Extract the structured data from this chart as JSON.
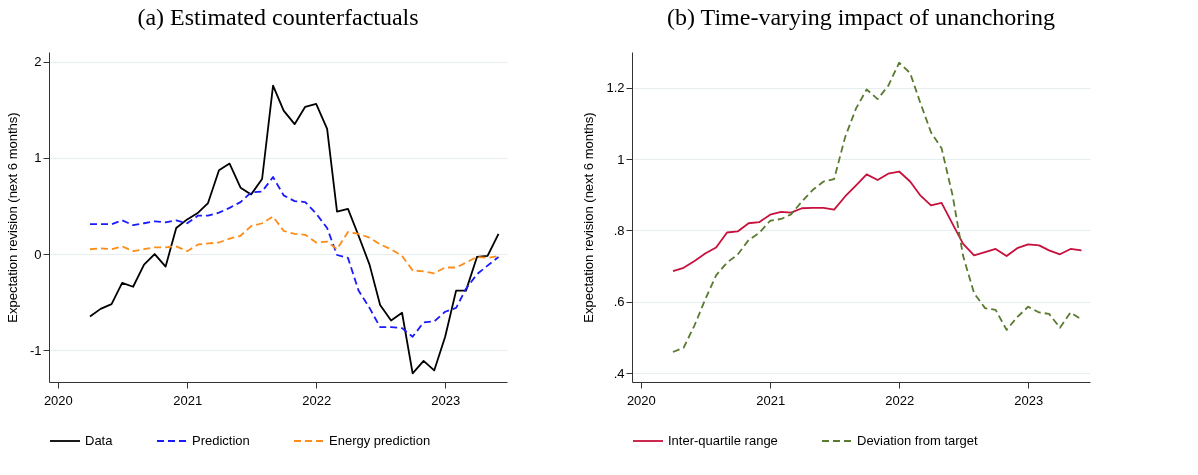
{
  "chart_data": [
    {
      "type": "line",
      "title": "(a) Estimated counterfactuals",
      "ylabel": "Expectation revision (next 6 months)",
      "x": [
        "2020-04",
        "2020-05",
        "2020-06",
        "2020-07",
        "2020-08",
        "2020-09",
        "2020-10",
        "2020-11",
        "2020-12",
        "2021-01",
        "2021-02",
        "2021-03",
        "2021-04",
        "2021-05",
        "2021-06",
        "2021-07",
        "2021-08",
        "2021-09",
        "2021-10",
        "2021-11",
        "2021-12",
        "2022-01",
        "2022-02",
        "2022-03",
        "2022-04",
        "2022-05",
        "2022-06",
        "2022-07",
        "2022-08",
        "2022-09",
        "2022-10",
        "2022-11",
        "2022-12",
        "2023-01",
        "2023-02",
        "2023-03",
        "2023-04",
        "2023-05",
        "2023-06"
      ],
      "series": [
        {
          "name": "Data",
          "color": "#000000",
          "line_style": "solid",
          "values": [
            -0.65,
            -0.57,
            -0.52,
            -0.3,
            -0.34,
            -0.11,
            0.0,
            -0.13,
            0.27,
            0.36,
            0.43,
            0.53,
            0.87,
            0.94,
            0.69,
            0.62,
            0.78,
            1.75,
            1.49,
            1.35,
            1.53,
            1.56,
            1.3,
            0.44,
            0.47,
            0.19,
            -0.11,
            -0.53,
            -0.69,
            -0.61,
            -1.24,
            -1.11,
            -1.21,
            -0.86,
            -0.38,
            -0.38,
            -0.03,
            -0.02,
            0.21
          ]
        },
        {
          "name": "Prediction",
          "color": "#1a1aff",
          "line_style": "dashed",
          "values": [
            0.31,
            0.31,
            0.31,
            0.35,
            0.3,
            0.32,
            0.34,
            0.33,
            0.35,
            0.32,
            0.4,
            0.4,
            0.43,
            0.48,
            0.54,
            0.64,
            0.65,
            0.8,
            0.61,
            0.55,
            0.54,
            0.42,
            0.27,
            -0.01,
            -0.04,
            -0.38,
            -0.56,
            -0.76,
            -0.76,
            -0.77,
            -0.86,
            -0.71,
            -0.7,
            -0.6,
            -0.56,
            -0.36,
            -0.21,
            -0.12,
            -0.03
          ]
        },
        {
          "name": "Energy prediction",
          "color": "#ff8c1a",
          "line_style": "dashed",
          "values": [
            0.05,
            0.06,
            0.05,
            0.08,
            0.03,
            0.05,
            0.07,
            0.07,
            0.08,
            0.03,
            0.1,
            0.11,
            0.12,
            0.16,
            0.19,
            0.29,
            0.32,
            0.39,
            0.24,
            0.21,
            0.2,
            0.12,
            0.13,
            0.05,
            0.23,
            0.21,
            0.17,
            0.1,
            0.05,
            -0.02,
            -0.17,
            -0.18,
            -0.2,
            -0.14,
            -0.14,
            -0.09,
            -0.03,
            -0.04,
            -0.02
          ]
        }
      ],
      "xlim": [
        "2019-12-07",
        "2023-06-25"
      ],
      "xticks": [
        {
          "value": "2020",
          "label": "2020"
        },
        {
          "value": "2021",
          "label": "2021"
        },
        {
          "value": "2022",
          "label": "2022"
        },
        {
          "value": "2023",
          "label": "2023"
        }
      ],
      "ylim": [
        -1.33,
        2.1
      ],
      "yticks": [
        -1,
        0,
        1,
        2
      ],
      "grid": "y",
      "legend": "bottom"
    },
    {
      "type": "line",
      "title": "(b) Time-varying impact of unanchoring",
      "ylabel": "Expectation revision (next 6 months)",
      "x": [
        "2020-04",
        "2020-05",
        "2020-06",
        "2020-07",
        "2020-08",
        "2020-09",
        "2020-10",
        "2020-11",
        "2020-12",
        "2021-01",
        "2021-02",
        "2021-03",
        "2021-04",
        "2021-05",
        "2021-06",
        "2021-07",
        "2021-08",
        "2021-09",
        "2021-10",
        "2021-11",
        "2021-12",
        "2022-01",
        "2022-02",
        "2022-03",
        "2022-04",
        "2022-05",
        "2022-06",
        "2022-07",
        "2022-08",
        "2022-09",
        "2022-10",
        "2022-11",
        "2022-12",
        "2023-01",
        "2023-02",
        "2023-03",
        "2023-04",
        "2023-05",
        "2023-06"
      ],
      "series": [
        {
          "name": "Inter-quartile range",
          "color": "#c8103c",
          "line_style": "solid",
          "values": [
            0.686,
            0.695,
            0.714,
            0.735,
            0.752,
            0.794,
            0.797,
            0.82,
            0.823,
            0.844,
            0.852,
            0.85,
            0.862,
            0.863,
            0.863,
            0.858,
            0.895,
            0.926,
            0.957,
            0.941,
            0.959,
            0.965,
            0.937,
            0.899,
            0.87,
            0.877,
            0.818,
            0.762,
            0.73,
            0.739,
            0.748,
            0.728,
            0.75,
            0.761,
            0.758,
            0.744,
            0.733,
            0.748,
            0.744
          ]
        },
        {
          "name": "Deviation from target",
          "color": "#5a7a30",
          "line_style": "dashed",
          "values": [
            0.459,
            0.471,
            0.534,
            0.606,
            0.674,
            0.71,
            0.732,
            0.773,
            0.793,
            0.827,
            0.832,
            0.845,
            0.881,
            0.913,
            0.937,
            0.944,
            1.061,
            1.142,
            1.195,
            1.168,
            1.205,
            1.27,
            1.241,
            1.16,
            1.075,
            1.03,
            0.899,
            0.728,
            0.624,
            0.582,
            0.577,
            0.521,
            0.557,
            0.586,
            0.57,
            0.566,
            0.527,
            0.57,
            0.55
          ]
        }
      ],
      "xlim": [
        "2019-12-07",
        "2023-06-25"
      ],
      "xticks": [
        {
          "value": "2020",
          "label": "2020"
        },
        {
          "value": "2021",
          "label": "2021"
        },
        {
          "value": "2022",
          "label": "2022"
        },
        {
          "value": "2023",
          "label": "2023"
        }
      ],
      "ylim": [
        0.375,
        1.3
      ],
      "yticks": [
        {
          "value": 0.4,
          "label": ".4"
        },
        {
          "value": 0.6,
          "label": ".6"
        },
        {
          "value": 0.8,
          "label": ".8"
        },
        1,
        1.2
      ],
      "grid": "y",
      "legend": "bottom"
    }
  ]
}
